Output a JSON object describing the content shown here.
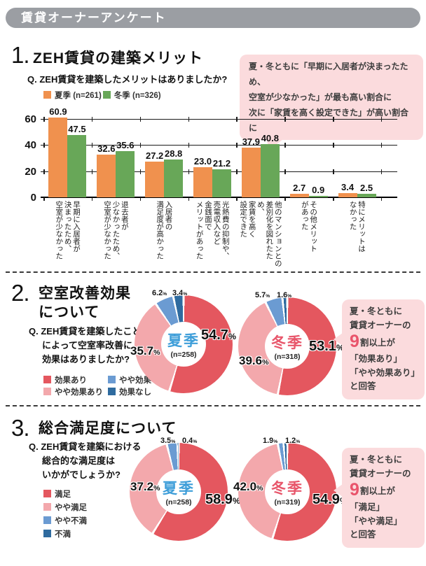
{
  "ui": {
    "percent": "%"
  },
  "palette": {
    "banner_gray": "#9B9EA3",
    "summer_orange": "#F0914E",
    "winter_green": "#68A758",
    "red": "#E4575F",
    "pink": "#F3A8AC",
    "light_blue": "#6B9BD2",
    "dark_blue": "#2F6B9F",
    "summer_text_blue": "#3E9ED9",
    "winter_text_red": "#E8566B",
    "callout_pink": "#FBDBDD",
    "highlight_red": "#E9546B"
  },
  "banner": {
    "title": "賃貸オーナーアンケート"
  },
  "sections": {
    "merit": {
      "number": "1.",
      "title": "ZEH賃貸の建築メリット",
      "question": "Q. ZEH賃貸を建築したメリットはありましたか?",
      "callout_lines": [
        "夏・冬ともに「早期に入居者が決まったため、",
        "空室が少なかった」が最も高い割合に",
        "次に「家賃を高く設定できた」が高い割合に"
      ]
    },
    "vacancy": {
      "number": "2.",
      "title_lines": [
        "空室改善効果",
        "について"
      ],
      "question_lines": [
        "Q. ZEH賃貸を建築したこと",
        "によって空室率改善に",
        "効果はありましたか?"
      ],
      "legend": [
        {
          "label": "効果あり",
          "color": "#E4575F"
        },
        {
          "label": "やや効果あり",
          "color": "#F3A8AC"
        },
        {
          "label": "やや効果なし",
          "color": "#6B9BD2"
        },
        {
          "label": "効果なし",
          "color": "#2F6B9F"
        }
      ],
      "callout": {
        "pre_lines": [
          "夏・冬ともに",
          "賃貸オーナーの"
        ],
        "big_digit": "9",
        "big_rest": "割以上が",
        "post_lines": [
          "「効果あり」",
          "「やや効果あり」",
          "と回答"
        ]
      }
    },
    "satisfaction": {
      "number": "3.",
      "title": "総合満足度について",
      "question_lines": [
        "Q. ZEH賃貸を建築における",
        "総合的な満足度は",
        "いかがでしょうか?"
      ],
      "legend": [
        {
          "label": "満足",
          "color": "#E4575F"
        },
        {
          "label": "やや満足",
          "color": "#F3A8AC"
        },
        {
          "label": "やや不満",
          "color": "#6B9BD2"
        },
        {
          "label": "不満",
          "color": "#2F6B9F"
        }
      ],
      "callout": {
        "pre_lines": [
          "夏・冬ともに",
          "賃貸オーナーの"
        ],
        "big_digit": "9",
        "big_rest": "割以上が",
        "post_lines": [
          "「満足」",
          "「やや満足」",
          "と回答"
        ]
      }
    }
  },
  "chart_data": [
    {
      "type": "bar",
      "title": "ZEH賃貸の建築メリット",
      "ylim": [
        0,
        60
      ],
      "yticks": [
        "0",
        "20",
        "40",
        "60"
      ],
      "grid": true,
      "legend_position": "top-left",
      "categories": [
        [
          "早期に入居者が",
          "決まったため、",
          "空室が少なかった"
        ],
        [
          "退去者が",
          "少なかったため、",
          "空室が少なかった"
        ],
        [
          "入居者の",
          "満足度が高かった"
        ],
        [
          "光熱費の抑制や、",
          "売電収入など",
          "金銭面で",
          "メリットがあった"
        ],
        [
          "他のマンションとの",
          "差別化を図れたため、",
          "家賃を高く",
          "設定できた"
        ],
        [
          "その他メリット",
          "があった"
        ],
        [
          "特にメリットは",
          "なかった"
        ]
      ],
      "series": [
        {
          "name": "夏季 (n=261)",
          "color": "#F0914E",
          "values": [
            60.9,
            32.6,
            27.2,
            23.0,
            37.9,
            2.7,
            3.4
          ],
          "value_labels": [
            "60.9",
            "32.6",
            "27.2",
            "23.0",
            "37.9",
            "2.7",
            "3.4"
          ]
        },
        {
          "name": "冬季 (n=326)",
          "color": "#68A758",
          "values": [
            47.5,
            35.6,
            28.8,
            21.2,
            40.8,
            0.9,
            2.5
          ],
          "value_labels": [
            "47.5",
            "35.6",
            "28.8",
            "21.2",
            "40.8",
            "0.9",
            "2.5"
          ]
        }
      ]
    },
    {
      "type": "donut",
      "group": "空室改善効果",
      "season": "夏季",
      "season_color": "#3E9ED9",
      "n_label": "(n=258)",
      "labels": [
        "効果あり",
        "やや効果あり",
        "やや効果なし",
        "効果なし"
      ],
      "values": [
        54.7,
        35.7,
        6.2,
        3.4
      ],
      "value_labels": [
        "54.7",
        "35.7",
        "6.2",
        "3.4"
      ],
      "colors": [
        "#E4575F",
        "#F3A8AC",
        "#6B9BD2",
        "#2F6B9F"
      ]
    },
    {
      "type": "donut",
      "group": "空室改善効果",
      "season": "冬季",
      "season_color": "#E8566B",
      "n_label": "(n=318)",
      "labels": [
        "効果あり",
        "やや効果あり",
        "やや効果なし",
        "効果なし"
      ],
      "values": [
        53.1,
        39.6,
        5.7,
        1.6
      ],
      "value_labels": [
        "53.1",
        "39.6",
        "5.7",
        "1.6"
      ],
      "colors": [
        "#E4575F",
        "#F3A8AC",
        "#6B9BD2",
        "#2F6B9F"
      ]
    },
    {
      "type": "donut",
      "group": "総合満足度",
      "season": "夏季",
      "season_color": "#3E9ED9",
      "n_label": "(n=258)",
      "labels": [
        "満足",
        "やや満足",
        "やや不満",
        "不満"
      ],
      "values": [
        58.9,
        37.2,
        3.5,
        0.4
      ],
      "value_labels": [
        "58.9",
        "37.2",
        "3.5",
        "0.4"
      ],
      "colors": [
        "#E4575F",
        "#F3A8AC",
        "#6B9BD2",
        "#2F6B9F"
      ]
    },
    {
      "type": "donut",
      "group": "総合満足度",
      "season": "冬季",
      "season_color": "#E8566B",
      "n_label": "(n=319)",
      "labels": [
        "満足",
        "やや満足",
        "やや不満",
        "不満"
      ],
      "values": [
        54.9,
        42.0,
        1.9,
        1.2
      ],
      "value_labels": [
        "54.9",
        "42.0",
        "1.9",
        "1.2"
      ],
      "colors": [
        "#E4575F",
        "#F3A8AC",
        "#6B9BD2",
        "#2F6B9F"
      ]
    }
  ]
}
